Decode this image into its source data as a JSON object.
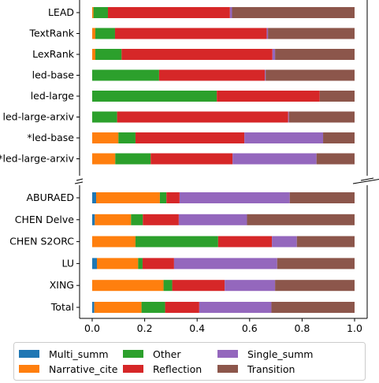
{
  "chart_data": {
    "type": "bar",
    "orientation": "horizontal",
    "stacked": true,
    "broken_axis": true,
    "xlim": [
      0,
      1
    ],
    "x_ticks": [
      "0.0",
      "0.2",
      "0.4",
      "0.6",
      "0.8",
      "1.0"
    ],
    "x_tick_values": [
      0,
      0.2,
      0.4,
      0.6,
      0.8,
      1.0
    ],
    "legend_position": "bottom",
    "legend_columns": 3,
    "series": [
      {
        "name": "Multi_summ",
        "color": "#1f77b4"
      },
      {
        "name": "Narrative_cite",
        "color": "#ff7f0e"
      },
      {
        "name": "Other",
        "color": "#2ca02c"
      },
      {
        "name": "Reflection",
        "color": "#d62728"
      },
      {
        "name": "Single_summ",
        "color": "#9467bd"
      },
      {
        "name": "Transition",
        "color": "#8c564b"
      }
    ],
    "panels": [
      {
        "name": "top",
        "categories": [
          "LEAD",
          "TextRank",
          "LexRank",
          "led-base",
          "led-large",
          "led-large-arxiv",
          "*led-base",
          "*led-large-arxiv"
        ],
        "values": [
          [
            0.0,
            0.005,
            0.055,
            0.465,
            0.008,
            0.467
          ],
          [
            0.0,
            0.012,
            0.075,
            0.578,
            0.005,
            0.33
          ],
          [
            0.0,
            0.012,
            0.1,
            0.575,
            0.01,
            0.303
          ],
          [
            0.0,
            0.0,
            0.255,
            0.403,
            0.003,
            0.339
          ],
          [
            0.0,
            0.0,
            0.475,
            0.392,
            0.0,
            0.133
          ],
          [
            0.0,
            0.0,
            0.095,
            0.652,
            0.003,
            0.25
          ],
          [
            0.0,
            0.1,
            0.065,
            0.415,
            0.3,
            0.12
          ],
          [
            0.0,
            0.088,
            0.135,
            0.312,
            0.32,
            0.145
          ]
        ]
      },
      {
        "name": "bottom",
        "categories": [
          "ABURAED",
          "CHEN Delve",
          "CHEN S2ORC",
          "LU",
          "XING",
          "Total"
        ],
        "values": [
          [
            0.015,
            0.243,
            0.025,
            0.05,
            0.42,
            0.247
          ],
          [
            0.01,
            0.138,
            0.045,
            0.137,
            0.26,
            0.41
          ],
          [
            0.0,
            0.165,
            0.315,
            0.205,
            0.095,
            0.22
          ],
          [
            0.018,
            0.157,
            0.017,
            0.12,
            0.393,
            0.295
          ],
          [
            0.0,
            0.272,
            0.033,
            0.2,
            0.192,
            0.303
          ],
          [
            0.008,
            0.18,
            0.09,
            0.13,
            0.275,
            0.317
          ]
        ]
      }
    ]
  }
}
